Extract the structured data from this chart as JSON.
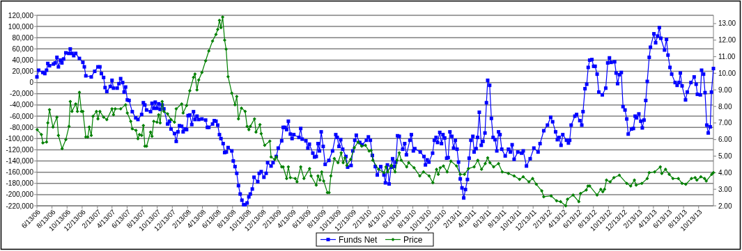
{
  "chart_data": {
    "type": "line",
    "xlim": [
      "2006-06-13",
      "2013-12-12"
    ],
    "xticks": [
      {
        "value": "2006-06-13",
        "label": "6/13/06"
      },
      {
        "value": "2006-08-13",
        "label": "8/13/06"
      },
      {
        "value": "2006-10-13",
        "label": "10/13/06"
      },
      {
        "value": "2006-12-13",
        "label": "12/13/06"
      },
      {
        "value": "2007-02-13",
        "label": "2/13/07"
      },
      {
        "value": "2007-04-13",
        "label": "4/13/07"
      },
      {
        "value": "2007-06-13",
        "label": "6/13/07"
      },
      {
        "value": "2007-08-13",
        "label": "8/13/07"
      },
      {
        "value": "2007-10-13",
        "label": "10/13/07"
      },
      {
        "value": "2007-12-13",
        "label": "12/13/07"
      },
      {
        "value": "2008-02-13",
        "label": "2/13/08"
      },
      {
        "value": "2008-04-13",
        "label": "4/13/08"
      },
      {
        "value": "2008-06-13",
        "label": "6/13/08"
      },
      {
        "value": "2008-08-13",
        "label": "8/13/08"
      },
      {
        "value": "2008-10-13",
        "label": "10/13/08"
      },
      {
        "value": "2008-12-13",
        "label": "12/13/08"
      },
      {
        "value": "2009-02-13",
        "label": "2/13/09"
      },
      {
        "value": "2009-04-13",
        "label": "4/13/09"
      },
      {
        "value": "2009-06-13",
        "label": "6/13/09"
      },
      {
        "value": "2009-08-13",
        "label": "8/13/09"
      },
      {
        "value": "2009-10-13",
        "label": "10/13/09"
      },
      {
        "value": "2009-12-13",
        "label": "12/13/09"
      },
      {
        "value": "2010-02-13",
        "label": "2/13/10"
      },
      {
        "value": "2010-04-13",
        "label": "4/13/10"
      },
      {
        "value": "2010-06-13",
        "label": "6/13/10"
      },
      {
        "value": "2010-08-13",
        "label": "8/13/10"
      },
      {
        "value": "2010-10-13",
        "label": "10/13/10"
      },
      {
        "value": "2010-12-13",
        "label": "12/13/10"
      },
      {
        "value": "2011-02-13",
        "label": "2/13/11"
      },
      {
        "value": "2011-04-13",
        "label": "4/13/11"
      },
      {
        "value": "2011-06-13",
        "label": "6/13/11"
      },
      {
        "value": "2011-08-13",
        "label": "8/13/11"
      },
      {
        "value": "2011-10-13",
        "label": "10/13/11"
      },
      {
        "value": "2011-12-13",
        "label": "12/13/11"
      },
      {
        "value": "2012-02-13",
        "label": "2/13/12"
      },
      {
        "value": "2012-04-13",
        "label": "4/13/12"
      },
      {
        "value": "2012-06-13",
        "label": "6/13/12"
      },
      {
        "value": "2012-08-13",
        "label": "8/13/12"
      },
      {
        "value": "2012-10-13",
        "label": "10/13/12"
      },
      {
        "value": "2012-12-13",
        "label": "12/13/12"
      },
      {
        "value": "2013-02-13",
        "label": "2/13/13"
      },
      {
        "value": "2013-04-13",
        "label": "4/13/13"
      },
      {
        "value": "2013-06-13",
        "label": "6/13/13"
      },
      {
        "value": "2013-08-13",
        "label": "8/13/13"
      },
      {
        "value": "2013-10-13",
        "label": "10/13/13"
      }
    ],
    "ylim": [
      -220000,
      120000
    ],
    "yticks": [
      {
        "value": -220000,
        "label": "-220,000"
      },
      {
        "value": -200000,
        "label": "-200,000"
      },
      {
        "value": -180000,
        "label": "-180,000"
      },
      {
        "value": -160000,
        "label": "-160,000"
      },
      {
        "value": -140000,
        "label": "-140,000"
      },
      {
        "value": -120000,
        "label": "-120,000"
      },
      {
        "value": -100000,
        "label": "-100,000"
      },
      {
        "value": -80000,
        "label": "-80,000"
      },
      {
        "value": -60000,
        "label": "-60,000"
      },
      {
        "value": -40000,
        "label": "-40,000"
      },
      {
        "value": -20000,
        "label": "-20,000"
      },
      0,
      {
        "value": 20000,
        "label": "20,000"
      },
      {
        "value": 40000,
        "label": "40,000"
      },
      {
        "value": 60000,
        "label": "60,000"
      },
      {
        "value": 80000,
        "label": "80,000"
      },
      {
        "value": 100000,
        "label": "100,000"
      },
      {
        "value": 120000,
        "label": "120,000"
      }
    ],
    "y2lim": [
      2,
      13.5
    ],
    "y2ticks": [
      {
        "value": 2,
        "label": "2.00"
      },
      {
        "value": 3,
        "label": "3.00"
      },
      {
        "value": 4,
        "label": "4.00"
      },
      {
        "value": 5,
        "label": "5.00"
      },
      {
        "value": 6,
        "label": "6.00"
      },
      {
        "value": 7,
        "label": "7.00"
      },
      {
        "value": 8,
        "label": "8.00"
      },
      {
        "value": 9,
        "label": "9.00"
      },
      {
        "value": 10,
        "label": "10.00"
      },
      {
        "value": 11,
        "label": "11.00"
      },
      {
        "value": 12,
        "label": "12.00"
      },
      {
        "value": 13,
        "label": "13.00"
      }
    ],
    "grid": "y",
    "legend": "bottom",
    "series": [
      {
        "name": "Funds Net",
        "color": "#0000ff",
        "marker": "square",
        "axis": "y",
        "x": [
          "2006-06-13",
          "2006-06-20",
          "2006-07-07",
          "2006-07-15",
          "2006-07-22",
          "2006-07-27",
          "2006-08-03",
          "2006-08-19",
          "2006-08-26",
          "2006-09-02",
          "2006-09-08",
          "2006-09-16",
          "2006-09-22",
          "2006-09-29",
          "2006-10-08",
          "2006-10-20",
          "2006-10-26",
          "2006-11-02",
          "2006-11-09",
          "2006-11-17",
          "2006-12-02",
          "2006-12-16",
          "2006-12-22",
          "2006-12-28",
          "2007-01-19",
          "2007-02-02",
          "2007-02-15",
          "2007-02-23",
          "2007-03-01",
          "2007-03-10",
          "2007-03-16",
          "2007-03-23",
          "2007-04-06",
          "2007-04-13",
          "2007-04-19",
          "2007-05-04",
          "2007-05-11",
          "2007-05-18",
          "2007-05-26",
          "2007-06-01",
          "2007-06-07",
          "2007-06-14",
          "2007-06-21",
          "2007-07-04",
          "2007-07-18",
          "2007-07-27",
          "2007-08-11",
          "2007-08-18",
          "2007-08-24",
          "2007-08-31",
          "2007-09-16",
          "2007-09-22",
          "2007-09-29",
          "2007-10-05",
          "2007-10-12",
          "2007-10-19",
          "2007-10-25",
          "2007-11-02",
          "2007-11-09",
          "2007-11-24",
          "2007-12-02",
          "2007-12-08",
          "2007-12-22",
          "2007-12-29",
          "2008-01-05",
          "2008-01-11",
          "2008-01-20",
          "2008-01-26",
          "2008-02-02",
          "2008-02-09",
          "2008-02-15",
          "2008-02-22",
          "2008-03-01",
          "2008-03-08",
          "2008-03-14",
          "2008-03-22",
          "2008-03-29",
          "2008-04-11",
          "2008-04-26",
          "2008-05-03",
          "2008-05-09",
          "2008-05-24",
          "2008-05-31",
          "2008-06-07",
          "2008-06-14",
          "2008-06-21",
          "2008-06-27",
          "2008-07-06",
          "2008-07-12",
          "2008-07-19",
          "2008-07-26",
          "2008-08-10",
          "2008-08-16",
          "2008-08-23",
          "2008-08-30",
          "2008-09-06",
          "2008-09-13",
          "2008-09-20",
          "2008-09-27",
          "2008-10-03",
          "2008-10-11",
          "2008-10-18",
          "2008-10-24",
          "2008-11-01",
          "2008-11-08",
          "2008-11-23",
          "2008-11-29",
          "2008-12-07",
          "2008-12-18",
          "2008-12-27",
          "2009-01-02",
          "2009-01-16",
          "2009-01-24",
          "2009-02-06",
          "2009-02-14",
          "2009-02-28",
          "2009-03-06",
          "2009-03-13",
          "2009-03-20",
          "2009-03-27",
          "2009-04-04",
          "2009-04-11",
          "2009-04-18",
          "2009-05-09",
          "2009-05-16",
          "2009-05-22",
          "2009-06-06",
          "2009-06-14",
          "2009-06-20",
          "2009-07-04",
          "2009-07-11",
          "2009-07-18",
          "2009-07-25",
          "2009-07-31",
          "2009-08-07",
          "2009-08-15",
          "2009-08-23",
          "2009-09-07",
          "2009-09-22",
          "2009-10-05",
          "2009-10-11",
          "2009-10-18",
          "2009-10-25",
          "2009-11-02",
          "2009-11-15",
          "2009-11-22",
          "2009-12-06",
          "2009-12-13",
          "2009-12-21",
          "2009-12-27",
          "2010-01-10",
          "2010-01-20",
          "2010-02-06",
          "2010-02-14",
          "2010-02-22",
          "2010-03-02",
          "2010-03-14",
          "2010-03-22",
          "2010-04-05",
          "2010-04-18",
          "2010-04-24",
          "2010-05-02",
          "2010-05-09",
          "2010-05-17",
          "2010-05-23",
          "2010-05-30",
          "2010-06-05",
          "2010-06-12",
          "2010-06-19",
          "2010-07-03",
          "2010-07-11",
          "2010-07-18",
          "2010-08-01",
          "2010-08-07",
          "2010-08-15",
          "2010-08-21",
          "2010-09-12",
          "2010-09-27",
          "2010-10-03",
          "2010-10-10",
          "2010-10-17",
          "2010-11-01",
          "2010-11-08",
          "2010-11-15",
          "2010-11-21",
          "2010-11-30",
          "2010-12-07",
          "2010-12-13",
          "2010-12-20",
          "2010-12-28",
          "2011-01-03",
          "2011-01-10",
          "2011-01-18",
          "2011-01-25",
          "2011-02-01",
          "2011-02-08",
          "2011-02-14",
          "2011-02-21",
          "2011-02-28",
          "2011-03-07",
          "2011-03-14",
          "2011-03-22",
          "2011-03-29",
          "2011-04-05",
          "2011-04-13",
          "2011-04-18",
          "2011-04-26",
          "2011-05-02",
          "2011-05-09",
          "2011-05-17",
          "2011-05-24",
          "2011-06-01",
          "2011-06-07",
          "2011-06-12",
          "2011-06-20",
          "2011-06-27",
          "2011-07-04",
          "2011-07-12",
          "2011-07-19",
          "2011-07-26",
          "2011-08-01",
          "2011-08-08",
          "2011-08-22",
          "2011-09-04",
          "2011-09-12",
          "2011-09-19",
          "2011-09-27",
          "2011-10-12",
          "2011-10-27",
          "2011-11-03",
          "2011-11-16",
          "2011-12-01",
          "2011-12-16",
          "2012-01-02",
          "2012-01-10",
          "2012-01-25",
          "2012-02-09",
          "2012-02-22",
          "2012-03-01",
          "2012-03-13",
          "2012-03-20",
          "2012-03-27",
          "2012-04-04",
          "2012-04-11",
          "2012-04-26",
          "2012-05-04",
          "2012-05-09",
          "2012-05-15",
          "2012-05-30",
          "2012-06-06",
          "2012-06-19",
          "2012-06-27",
          "2012-07-02",
          "2012-07-10",
          "2012-07-17",
          "2012-07-23",
          "2012-07-29",
          "2012-08-07",
          "2012-08-14",
          "2012-08-20",
          "2012-08-28",
          "2012-09-04",
          "2012-09-18",
          "2012-10-02",
          "2012-10-10",
          "2012-10-17",
          "2012-10-24",
          "2012-11-07",
          "2012-11-13",
          "2012-11-19",
          "2012-11-26",
          "2012-12-04",
          "2012-12-11",
          "2012-12-19",
          "2012-12-26",
          "2013-01-01",
          "2013-01-14",
          "2013-01-22",
          "2013-01-29",
          "2013-02-04",
          "2013-02-13",
          "2013-02-21",
          "2013-02-27",
          "2013-03-06",
          "2013-03-13",
          "2013-03-19",
          "2013-03-27",
          "2013-04-01",
          "2013-04-15",
          "2013-04-22",
          "2013-04-30",
          "2013-05-07",
          "2013-05-13",
          "2013-05-28",
          "2013-06-05",
          "2013-06-11",
          "2013-06-19",
          "2013-06-26",
          "2013-07-10",
          "2013-07-18",
          "2013-07-26",
          "2013-07-31",
          "2013-08-07",
          "2013-08-21",
          "2013-08-28",
          "2013-09-12",
          "2013-09-25",
          "2013-10-03",
          "2013-10-08",
          "2013-10-20",
          "2013-10-25",
          "2013-11-02",
          "2013-11-08",
          "2013-11-15",
          "2013-11-21",
          "2013-11-29",
          "2013-12-04",
          "2013-12-12"
        ],
        "values": [
          10000,
          22000,
          18000,
          16000,
          22000,
          34000,
          30000,
          33000,
          35000,
          45000,
          28000,
          40000,
          35000,
          42000,
          53000,
          52000,
          60000,
          52000,
          48000,
          52000,
          43000,
          36000,
          28000,
          12000,
          10000,
          20000,
          28000,
          28000,
          16000,
          9000,
          -9000,
          -16000,
          -7000,
          4000,
          -10000,
          -10000,
          -2000,
          7000,
          0,
          -17000,
          -8000,
          -31000,
          -32000,
          -52000,
          -63000,
          -66000,
          -57000,
          -36000,
          -40000,
          -49000,
          -52000,
          -37000,
          -46000,
          -35000,
          -46000,
          -38000,
          -48000,
          -40000,
          -47000,
          -74000,
          -69000,
          -83000,
          -91000,
          -105000,
          -88000,
          -77000,
          -78000,
          -88000,
          -83000,
          -84000,
          -59000,
          -58000,
          -75000,
          -52000,
          -66000,
          -60000,
          -66000,
          -65000,
          -67000,
          -80000,
          -80000,
          -74000,
          -68000,
          -69000,
          -76000,
          -93000,
          -100000,
          -109000,
          -125000,
          -124000,
          -116000,
          -122000,
          -140000,
          -150000,
          -162000,
          -184000,
          -199000,
          -210000,
          -218000,
          -218000,
          -215000,
          -204000,
          -199000,
          -190000,
          -169000,
          -177000,
          -162000,
          -159000,
          -169000,
          -162000,
          -143000,
          -149000,
          -143000,
          -132000,
          -117000,
          -104000,
          -80000,
          -80000,
          -84000,
          -69000,
          -92000,
          -100000,
          -93000,
          -98000,
          -82000,
          -101000,
          -104000,
          -117000,
          -110000,
          -126000,
          -133000,
          -132000,
          -109000,
          -122000,
          -88000,
          -114000,
          -146000,
          -139000,
          -122000,
          -93000,
          -98000,
          -114000,
          -102000,
          -119000,
          -132000,
          -151000,
          -148000,
          -122000,
          -103000,
          -94000,
          -107000,
          -111000,
          -103000,
          -97000,
          -103000,
          -130000,
          -150000,
          -165000,
          -150000,
          -165000,
          -179000,
          -147000,
          -181000,
          -151000,
          -136000,
          -150000,
          -142000,
          -95000,
          -96000,
          -119000,
          -109000,
          -129000,
          -103000,
          -93000,
          -122000,
          -118000,
          -124000,
          -132000,
          -147000,
          -138000,
          -142000,
          -126000,
          -103000,
          -98000,
          -107000,
          -89000,
          -109000,
          -93000,
          -99000,
          -135000,
          -134000,
          -88000,
          -96000,
          -117000,
          -103000,
          -119000,
          -142000,
          -172000,
          -188000,
          -206000,
          -191000,
          -173000,
          -135000,
          -103000,
          -96000,
          -124000,
          -118000,
          -98000,
          -53000,
          -112000,
          -105000,
          -90000,
          -36000,
          4000,
          -5000,
          -64000,
          -98000,
          -102000,
          -122000,
          -88000,
          -93000,
          -119000,
          -131000,
          -119000,
          -124000,
          -111000,
          -137000,
          -124000,
          -126000,
          -122000,
          -149000,
          -136000,
          -117000,
          -124000,
          -109000,
          -86000,
          -76000,
          -62000,
          -70000,
          -88000,
          -102000,
          -98000,
          -112000,
          -93000,
          -103000,
          -108000,
          -103000,
          -76000,
          -60000,
          -57000,
          -68000,
          -76000,
          -52000,
          -11000,
          -3000,
          27000,
          40000,
          41000,
          29000,
          29000,
          15000,
          -17000,
          -22000,
          -10000,
          35000,
          44000,
          36000,
          37000,
          17000,
          -2000,
          14000,
          18000,
          -43000,
          -49000,
          -65000,
          -92000,
          -83000,
          -82000,
          -60000,
          -63000,
          -56000,
          -69000,
          -81000,
          -67000,
          -32000,
          2000,
          45000,
          63000,
          87000,
          71000,
          83000,
          98000,
          79000,
          58000,
          77000,
          49000,
          27000,
          15000,
          0,
          -5000,
          0,
          17000,
          -6000,
          -31000,
          -17000,
          0,
          10000,
          -3000,
          -21000,
          -22000,
          22000,
          15000,
          -18000,
          -76000,
          -90000,
          -79000,
          -17000,
          25000
        ]
      },
      {
        "name": "Price",
        "color": "#008000",
        "marker": "diamond",
        "axis": "y2",
        "x": [
          "2006-06-14",
          "2006-07-01",
          "2006-07-07",
          "2006-07-22",
          "2006-07-27",
          "2006-08-03",
          "2006-08-17",
          "2006-09-02",
          "2006-09-08",
          "2006-09-23",
          "2006-10-08",
          "2006-10-21",
          "2006-10-26",
          "2006-11-02",
          "2006-11-17",
          "2006-11-24",
          "2006-12-02",
          "2006-12-10",
          "2006-12-16",
          "2006-12-28",
          "2007-01-05",
          "2007-01-11",
          "2007-01-19",
          "2007-01-26",
          "2007-02-09",
          "2007-02-15",
          "2007-02-23",
          "2007-03-10",
          "2007-03-23",
          "2007-04-13",
          "2007-04-19",
          "2007-04-26",
          "2007-05-18",
          "2007-06-07",
          "2007-06-14",
          "2007-06-28",
          "2007-07-04",
          "2007-07-19",
          "2007-07-27",
          "2007-08-02",
          "2007-08-11",
          "2007-08-18",
          "2007-08-24",
          "2007-08-31",
          "2007-09-16",
          "2007-09-22",
          "2007-09-29",
          "2007-10-12",
          "2007-10-19",
          "2007-10-25",
          "2007-11-02",
          "2007-11-09",
          "2007-11-24",
          "2007-12-08",
          "2007-12-22",
          "2007-12-29",
          "2008-01-20",
          "2008-01-26",
          "2008-02-09",
          "2008-02-22",
          "2008-03-08",
          "2008-03-14",
          "2008-03-22",
          "2008-03-29",
          "2008-04-11",
          "2008-04-26",
          "2008-05-09",
          "2008-05-24",
          "2008-06-07",
          "2008-06-14",
          "2008-06-21",
          "2008-06-27",
          "2008-07-04",
          "2008-07-12",
          "2008-07-18",
          "2008-07-26",
          "2008-08-10",
          "2008-08-23",
          "2008-08-30",
          "2008-09-06",
          "2008-09-18",
          "2008-10-03",
          "2008-10-11",
          "2008-10-18",
          "2008-10-24",
          "2008-11-10",
          "2008-11-16",
          "2008-12-02",
          "2008-12-07",
          "2008-12-21",
          "2009-01-11",
          "2009-01-16",
          "2009-01-31",
          "2009-02-06",
          "2009-02-28",
          "2009-03-06",
          "2009-03-20",
          "2009-03-27",
          "2009-04-04",
          "2009-04-24",
          "2009-05-01",
          "2009-05-16",
          "2009-05-29",
          "2009-06-21",
          "2009-06-27",
          "2009-07-18",
          "2009-07-25",
          "2009-08-02",
          "2009-08-09",
          "2009-08-17",
          "2009-09-01",
          "2009-09-08",
          "2009-09-15",
          "2009-09-29",
          "2009-10-14",
          "2009-10-27",
          "2009-11-04",
          "2009-11-11",
          "2009-11-19",
          "2009-12-04",
          "2009-12-19",
          "2010-01-03",
          "2010-01-18",
          "2010-02-02",
          "2010-02-17",
          "2010-02-25",
          "2010-03-04",
          "2010-03-27",
          "2010-04-18",
          "2010-04-26",
          "2010-05-03",
          "2010-05-18",
          "2010-06-02",
          "2010-06-10",
          "2010-06-19",
          "2010-06-27",
          "2010-07-19",
          "2010-07-27",
          "2010-08-18",
          "2010-09-10",
          "2010-09-25",
          "2010-10-18",
          "2010-11-02",
          "2010-11-17",
          "2010-11-24",
          "2010-12-02",
          "2010-12-15",
          "2010-12-30",
          "2011-01-14",
          "2011-02-06",
          "2011-02-21",
          "2011-03-10",
          "2011-03-26",
          "2011-04-18",
          "2011-05-03",
          "2011-05-18",
          "2011-06-02",
          "2011-06-12",
          "2011-06-21",
          "2011-07-06",
          "2011-07-26",
          "2011-08-10",
          "2011-09-04",
          "2011-09-27",
          "2011-10-19",
          "2011-11-03",
          "2011-11-26",
          "2011-12-11",
          "2011-12-26",
          "2012-01-17",
          "2012-01-25",
          "2012-02-24",
          "2012-03-17",
          "2012-04-02",
          "2012-04-23",
          "2012-04-30",
          "2012-05-23",
          "2012-06-15",
          "2012-06-22",
          "2012-07-15",
          "2012-07-22",
          "2012-07-29",
          "2012-08-28",
          "2012-09-12",
          "2012-09-20",
          "2012-09-27",
          "2012-10-05",
          "2012-10-20",
          "2012-11-04",
          "2012-11-26",
          "2012-12-26",
          "2013-01-11",
          "2013-01-26",
          "2013-02-02",
          "2013-02-25",
          "2013-03-19",
          "2013-03-27",
          "2013-04-18",
          "2013-05-11",
          "2013-05-17",
          "2013-06-01",
          "2013-06-16",
          "2013-07-01",
          "2013-07-23",
          "2013-08-07",
          "2013-08-22",
          "2013-09-14",
          "2013-09-29",
          "2013-10-06",
          "2013-10-22",
          "2013-11-06",
          "2013-11-13",
          "2013-12-05",
          "2013-12-12"
        ],
        "values": [
          6.6,
          6.3,
          5.8,
          5.85,
          7.0,
          7.8,
          6.75,
          7.35,
          6.25,
          5.45,
          6.0,
          6.8,
          8.3,
          7.7,
          8.15,
          7.7,
          8.85,
          7.7,
          7.7,
          6.15,
          6.15,
          6.75,
          6.25,
          7.4,
          7.7,
          7.25,
          7.7,
          7.35,
          7.2,
          7.85,
          7.5,
          7.85,
          7.85,
          8.1,
          7.6,
          7.1,
          6.65,
          6.55,
          6.05,
          6.3,
          6.25,
          6.85,
          5.6,
          5.6,
          6.45,
          6.2,
          7.1,
          7.05,
          7.5,
          7.0,
          8.3,
          7.7,
          7.55,
          7.2,
          7.05,
          7.85,
          8.15,
          7.6,
          8.05,
          8.95,
          9.75,
          9.95,
          9.0,
          9.6,
          10.05,
          10.75,
          11.35,
          11.95,
          12.35,
          12.65,
          13.2,
          12.75,
          13.4,
          12.0,
          11.45,
          9.8,
          8.8,
          8.1,
          8.6,
          7.25,
          7.9,
          7.7,
          6.8,
          6.6,
          6.8,
          7.25,
          6.45,
          6.9,
          6.35,
          5.65,
          5.9,
          4.95,
          4.8,
          4.95,
          4.35,
          4.35,
          3.65,
          4.35,
          3.7,
          3.65,
          3.45,
          4.35,
          3.65,
          4.25,
          3.8,
          3.25,
          3.8,
          3.55,
          4.05,
          3.5,
          2.8,
          2.8,
          3.8,
          4.85,
          4.6,
          5.2,
          4.6,
          4.9,
          4.45,
          4.8,
          5.5,
          5.85,
          5.6,
          5.65,
          5.3,
          5.35,
          4.75,
          4.2,
          4.0,
          4.35,
          4.05,
          4.45,
          4.05,
          4.75,
          5.2,
          4.75,
          4.35,
          4.6,
          4.3,
          3.8,
          4.05,
          3.8,
          3.4,
          4.2,
          3.9,
          4.3,
          4.4,
          4.05,
          4.7,
          4.4,
          3.9,
          3.9,
          4.25,
          4.35,
          4.75,
          4.2,
          4.55,
          4.9,
          4.6,
          4.35,
          4.55,
          4.05,
          3.95,
          3.8,
          3.6,
          3.75,
          3.45,
          3.65,
          3.3,
          2.9,
          2.55,
          2.6,
          2.3,
          2.25,
          2.0,
          2.4,
          2.65,
          2.25,
          2.75,
          2.95,
          3.2,
          3.2,
          2.65,
          3.0,
          2.85,
          3.0,
          3.55,
          3.45,
          3.7,
          3.85,
          3.35,
          3.2,
          3.55,
          3.25,
          3.35,
          3.65,
          4.0,
          4.05,
          4.35,
          3.95,
          4.2,
          3.9,
          3.65,
          3.65,
          3.35,
          3.3,
          3.65,
          3.7,
          3.55,
          3.75,
          3.65,
          3.5,
          3.9,
          4.0
        ]
      }
    ]
  }
}
